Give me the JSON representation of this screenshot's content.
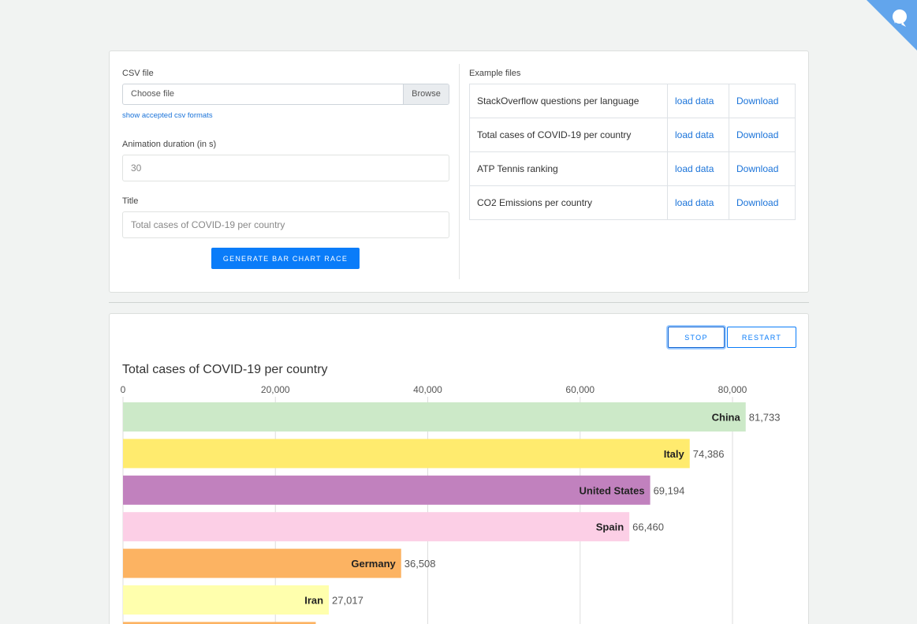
{
  "form": {
    "csv_label": "CSV file",
    "file_placeholder": "Choose file",
    "browse_label": "Browse",
    "formats_link": "show accepted csv formats",
    "duration_label": "Animation duration (in s)",
    "duration_placeholder": "30",
    "title_label": "Title",
    "title_placeholder": "Total cases of COVID-19 per country",
    "generate_label": "GENERATE BAR CHART RACE"
  },
  "examples": {
    "label": "Example files",
    "rows": [
      {
        "name": "StackOverflow questions per language",
        "load": "load data",
        "download": "Download"
      },
      {
        "name": "Total cases of COVID-19 per country",
        "load": "load data",
        "download": "Download"
      },
      {
        "name": "ATP Tennis ranking",
        "load": "load data",
        "download": "Download"
      },
      {
        "name": "CO2 Emissions per country",
        "load": "load data",
        "download": "Download"
      }
    ]
  },
  "controls": {
    "stop_label": "STOP",
    "restart_label": "RESTART"
  },
  "corner_icon": "github-icon",
  "chart_data": {
    "type": "bar",
    "orientation": "horizontal",
    "title": "Total cases of COVID-19 per country",
    "xlim": [
      0,
      85000
    ],
    "x_ticks": [
      "0",
      "20,000",
      "40,000",
      "60,000",
      "80,000"
    ],
    "x_tick_values": [
      0,
      20000,
      40000,
      60000,
      80000
    ],
    "grid": true,
    "categories": [
      "China",
      "Italy",
      "United States",
      "Spain",
      "Germany",
      "Iran"
    ],
    "values": [
      81733,
      74386,
      69194,
      66460,
      36508,
      27017
    ],
    "value_labels": [
      "81,733",
      "74,386",
      "69,194",
      "66,460",
      "36,508",
      "27,017"
    ],
    "colors": [
      "#cce9c8",
      "#ffeb6e",
      "#c181be",
      "#fccfe6",
      "#fcb362",
      "#ffffad"
    ],
    "partial_next_value": 25300,
    "partial_next_color": "#fcb362"
  }
}
